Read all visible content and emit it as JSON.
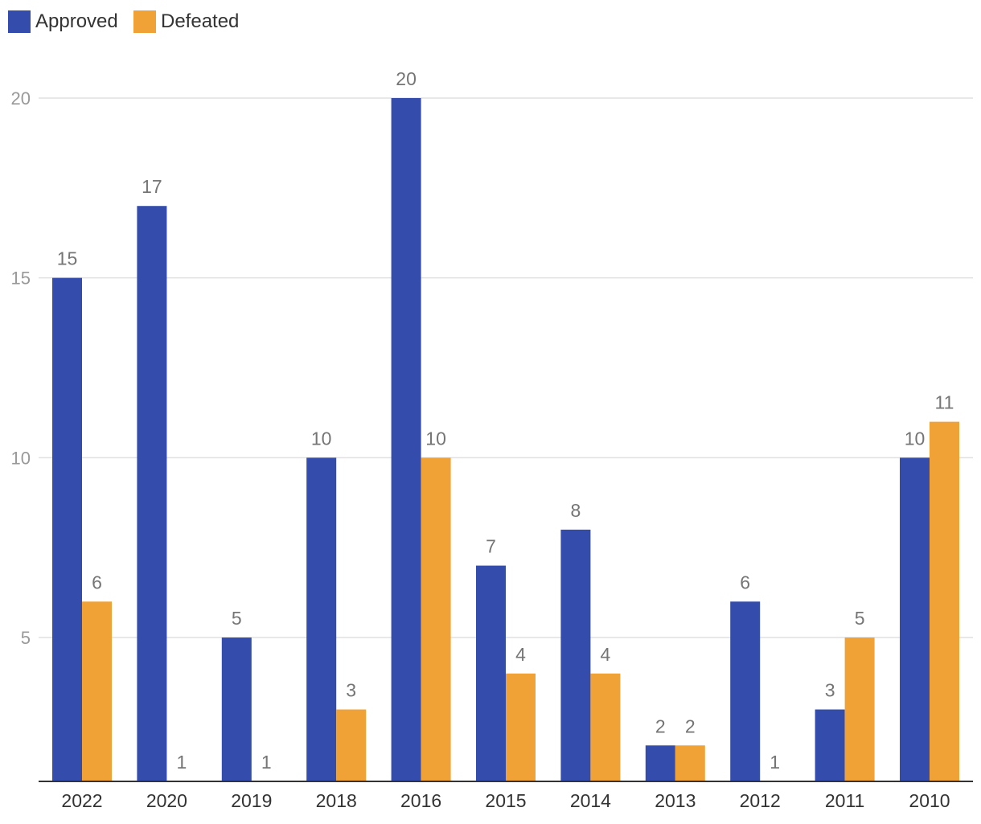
{
  "chart_data": {
    "type": "bar",
    "title": "",
    "xlabel": "",
    "ylabel": "",
    "categories": [
      "2022",
      "2020",
      "2019",
      "2018",
      "2016",
      "2015",
      "2014",
      "2013",
      "2012",
      "2011",
      "2010"
    ],
    "series": [
      {
        "name": "Approved",
        "color": "#344CAB",
        "values": [
          15,
          17,
          5,
          10,
          20,
          7,
          8,
          2,
          6,
          3,
          10
        ]
      },
      {
        "name": "Defeated",
        "color": "#F0A236",
        "values": [
          6,
          1,
          1,
          3,
          10,
          4,
          4,
          2,
          1,
          5,
          11
        ]
      }
    ],
    "yticks": [
      "5",
      "10",
      "15",
      "20"
    ],
    "ylim": [
      1,
      21
    ],
    "grid": true,
    "legend": "top-left",
    "data_labels": true
  }
}
